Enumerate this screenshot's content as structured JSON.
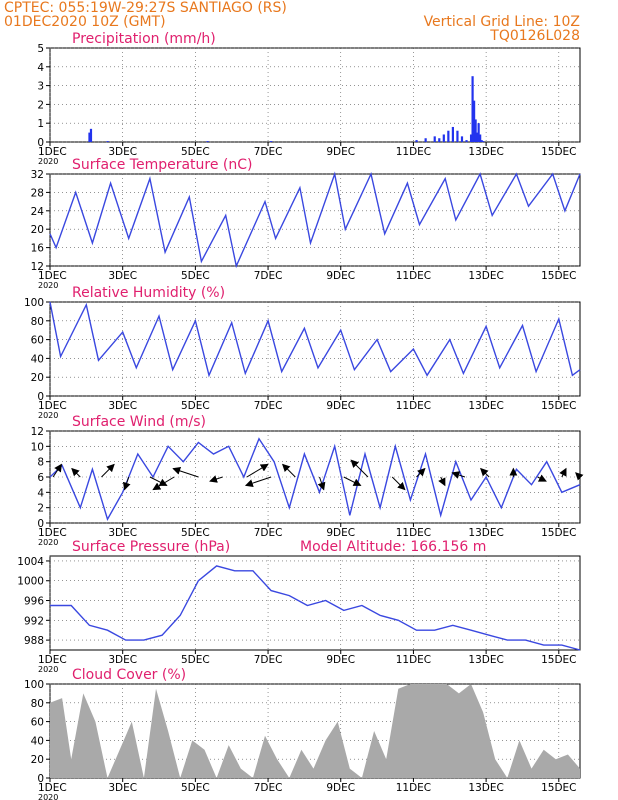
{
  "header": {
    "source_line": "CPTEC:   055:19W-29:27S   SANTIAGO (RS)",
    "date_line": "01DEC2020 10Z (GMT)",
    "grid_note": "Vertical Grid Line: 10Z",
    "code": "TQ0126L028"
  },
  "x_axis": {
    "tick_labels": [
      "1DEC",
      "3DEC",
      "5DEC",
      "7DEC",
      "9DEC",
      "11DEC",
      "13DEC",
      "15DEC"
    ],
    "year_label": "2020",
    "start": "2020-12-01",
    "end": "2020-12-16"
  },
  "colors": {
    "line": "#3a48e0",
    "bars": "#2233ee",
    "cloud": "#a9a9a9",
    "header": "#e8781e",
    "panel_title": "#e0206e"
  },
  "chart_data": [
    {
      "id": "precipitation",
      "type": "bar",
      "title": "Precipitation (mm/h)",
      "ylim": [
        0,
        5
      ],
      "yticks": [
        0,
        1,
        2,
        3,
        4,
        5
      ],
      "grid": true,
      "x": [
        "2020-12-02T12Z",
        "2020-12-02T13Z",
        "2020-12-03T00Z",
        "2020-12-05T18Z",
        "2020-12-07T12Z",
        "2020-12-11T12Z",
        "2020-12-11T18Z",
        "2020-12-12T00Z",
        "2020-12-12T03Z",
        "2020-12-12T06Z",
        "2020-12-12T09Z",
        "2020-12-12T12Z",
        "2020-12-12T15Z",
        "2020-12-12T18Z",
        "2020-12-12T21Z",
        "2020-12-13T00Z",
        "2020-12-13T01Z",
        "2020-12-13T02Z",
        "2020-12-13T03Z",
        "2020-12-13T04Z",
        "2020-12-13T05Z",
        "2020-12-13T06Z",
        "2020-12-13T07Z",
        "2020-12-13T08Z"
      ],
      "values": [
        0.5,
        0.7,
        0.05,
        0.05,
        0.05,
        0.1,
        0.2,
        0.3,
        0.2,
        0.4,
        0.6,
        0.8,
        0.6,
        0.3,
        0.1,
        0.4,
        3.5,
        2.2,
        1.2,
        0.5,
        1.0,
        0.4,
        0.1,
        0.05
      ]
    },
    {
      "id": "temperature",
      "type": "line",
      "title": "Surface Temperature (nC)",
      "ylim": [
        12,
        32
      ],
      "yticks": [
        12,
        16,
        20,
        24,
        28,
        32
      ],
      "grid": true,
      "x": [
        "2020-12-01T10Z",
        "2020-12-01T14Z",
        "2020-12-02T03Z",
        "2020-12-02T14Z",
        "2020-12-03T02Z",
        "2020-12-03T14Z",
        "2020-12-04T04Z",
        "2020-12-04T14Z",
        "2020-12-05T06Z",
        "2020-12-05T14Z",
        "2020-12-06T06Z",
        "2020-12-06T13Z",
        "2020-12-07T08Z",
        "2020-12-07T15Z",
        "2020-12-08T07Z",
        "2020-12-08T14Z",
        "2020-12-09T06Z",
        "2020-12-09T13Z",
        "2020-12-10T06Z",
        "2020-12-10T15Z",
        "2020-12-11T06Z",
        "2020-12-11T14Z",
        "2020-12-12T07Z",
        "2020-12-12T14Z",
        "2020-12-13T06Z",
        "2020-12-13T14Z",
        "2020-12-14T06Z",
        "2020-12-14T14Z",
        "2020-12-15T06Z",
        "2020-12-15T14Z",
        "2020-12-16T00Z"
      ],
      "values": [
        19,
        16,
        28,
        17,
        30,
        18,
        31,
        15,
        27,
        13,
        23,
        12,
        26,
        18,
        29,
        17,
        32,
        20,
        32,
        19,
        30,
        21,
        31,
        22,
        32,
        23,
        32,
        25,
        32,
        24,
        32
      ]
    },
    {
      "id": "humidity",
      "type": "line",
      "title": "Relative Humidity (%)",
      "ylim": [
        0,
        100
      ],
      "yticks": [
        0,
        20,
        40,
        60,
        80,
        100
      ],
      "grid": true,
      "x": [
        "2020-12-01T10Z",
        "2020-12-01T17Z",
        "2020-12-02T10Z",
        "2020-12-02T18Z",
        "2020-12-03T10Z",
        "2020-12-03T19Z",
        "2020-12-04T10Z",
        "2020-12-04T19Z",
        "2020-12-05T10Z",
        "2020-12-05T19Z",
        "2020-12-06T10Z",
        "2020-12-06T19Z",
        "2020-12-07T10Z",
        "2020-12-07T19Z",
        "2020-12-08T10Z",
        "2020-12-08T19Z",
        "2020-12-09T10Z",
        "2020-12-09T19Z",
        "2020-12-10T10Z",
        "2020-12-10T19Z",
        "2020-12-11T10Z",
        "2020-12-11T19Z",
        "2020-12-12T10Z",
        "2020-12-12T19Z",
        "2020-12-13T10Z",
        "2020-12-13T19Z",
        "2020-12-14T10Z",
        "2020-12-14T19Z",
        "2020-12-15T10Z",
        "2020-12-15T19Z",
        "2020-12-16T00Z"
      ],
      "values": [
        100,
        42,
        97,
        38,
        68,
        30,
        85,
        28,
        80,
        22,
        78,
        24,
        80,
        26,
        72,
        30,
        70,
        28,
        60,
        26,
        50,
        22,
        60,
        24,
        74,
        30,
        75,
        26,
        82,
        22,
        28
      ]
    },
    {
      "id": "wind",
      "type": "line",
      "title": "Surface Wind (m/s)",
      "ylim": [
        0,
        12
      ],
      "yticks": [
        0,
        2,
        4,
        6,
        8,
        10,
        12
      ],
      "grid": true,
      "x": [
        "2020-12-01T10Z",
        "2020-12-01T18Z",
        "2020-12-02T06Z",
        "2020-12-02T14Z",
        "2020-12-03T00Z",
        "2020-12-03T10Z",
        "2020-12-03T20Z",
        "2020-12-04T06Z",
        "2020-12-04T16Z",
        "2020-12-05T02Z",
        "2020-12-05T12Z",
        "2020-12-05T22Z",
        "2020-12-06T08Z",
        "2020-12-06T18Z",
        "2020-12-07T04Z",
        "2020-12-07T14Z",
        "2020-12-08T00Z",
        "2020-12-08T10Z",
        "2020-12-08T20Z",
        "2020-12-09T06Z",
        "2020-12-09T16Z",
        "2020-12-10T02Z",
        "2020-12-10T12Z",
        "2020-12-10T22Z",
        "2020-12-11T08Z",
        "2020-12-11T18Z",
        "2020-12-12T04Z",
        "2020-12-12T14Z",
        "2020-12-13T00Z",
        "2020-12-13T10Z",
        "2020-12-13T20Z",
        "2020-12-14T06Z",
        "2020-12-14T16Z",
        "2020-12-15T02Z",
        "2020-12-15T12Z",
        "2020-12-16T00Z"
      ],
      "values": [
        6,
        7.5,
        2,
        7,
        0.5,
        4,
        9,
        6,
        10,
        8,
        10.5,
        9,
        10,
        6,
        11,
        8,
        2,
        9,
        4,
        10,
        1,
        9,
        2,
        10,
        3,
        9,
        1,
        8,
        3,
        6,
        2,
        7,
        5,
        8,
        4,
        5
      ],
      "arrows": {
        "x": [
          "2020-12-01T12Z",
          "2020-12-02T06Z",
          "2020-12-02T20Z",
          "2020-12-03T14Z",
          "2020-12-04T04Z",
          "2020-12-04T20Z",
          "2020-12-05T12Z",
          "2020-12-06T04Z",
          "2020-12-06T20Z",
          "2020-12-07T12Z",
          "2020-12-08T04Z",
          "2020-12-08T20Z",
          "2020-12-09T12Z",
          "2020-12-10T04Z",
          "2020-12-10T20Z",
          "2020-12-11T12Z",
          "2020-12-12T04Z",
          "2020-12-12T20Z",
          "2020-12-13T12Z",
          "2020-12-14T04Z",
          "2020-12-14T20Z",
          "2020-12-15T12Z",
          "2020-12-16T00Z"
        ],
        "u": [
          2,
          -2,
          3,
          -1,
          4,
          -5,
          -6,
          -3,
          5,
          -6,
          -3,
          1,
          4,
          -4,
          3,
          2,
          1,
          -3,
          -2,
          0,
          2,
          1,
          -1
        ],
        "v": [
          3,
          2,
          3,
          -3,
          -2,
          -3,
          2,
          -1,
          3,
          -2,
          3,
          -3,
          -2,
          4,
          -3,
          2,
          -2,
          1,
          2,
          2,
          -1,
          2,
          1
        ]
      }
    },
    {
      "id": "pressure",
      "type": "line",
      "title": "Surface Pressure (hPa)",
      "annotation": "Model Altitude: 166.156  m",
      "ylim": [
        986,
        1005
      ],
      "yticks": [
        988,
        992,
        996,
        1000,
        1004
      ],
      "grid": true,
      "x": [
        "2020-12-01T10Z",
        "2020-12-02T00Z",
        "2020-12-02T12Z",
        "2020-12-03T00Z",
        "2020-12-03T12Z",
        "2020-12-04T00Z",
        "2020-12-04T12Z",
        "2020-12-05T00Z",
        "2020-12-05T12Z",
        "2020-12-06T00Z",
        "2020-12-06T12Z",
        "2020-12-07T00Z",
        "2020-12-07T12Z",
        "2020-12-08T00Z",
        "2020-12-08T12Z",
        "2020-12-09T00Z",
        "2020-12-09T12Z",
        "2020-12-10T00Z",
        "2020-12-10T12Z",
        "2020-12-11T00Z",
        "2020-12-11T12Z",
        "2020-12-12T00Z",
        "2020-12-12T12Z",
        "2020-12-13T00Z",
        "2020-12-13T12Z",
        "2020-12-14T00Z",
        "2020-12-14T12Z",
        "2020-12-15T00Z",
        "2020-12-15T12Z",
        "2020-12-16T00Z"
      ],
      "values": [
        995,
        995,
        991,
        990,
        988,
        988,
        989,
        993,
        1000,
        1003,
        1002,
        1002,
        998,
        997,
        995,
        996,
        994,
        995,
        993,
        992,
        990,
        990,
        991,
        990,
        989,
        988,
        988,
        987,
        987,
        986
      ]
    },
    {
      "id": "cloud_cover",
      "type": "area",
      "title": "Cloud Cover (%)",
      "ylim": [
        0,
        100
      ],
      "yticks": [
        0,
        20,
        40,
        60,
        80,
        100
      ],
      "grid": true,
      "x": [
        "2020-12-01T10Z",
        "2020-12-01T18Z",
        "2020-12-02T00Z",
        "2020-12-02T08Z",
        "2020-12-02T16Z",
        "2020-12-03T00Z",
        "2020-12-03T08Z",
        "2020-12-03T16Z",
        "2020-12-04T00Z",
        "2020-12-04T08Z",
        "2020-12-04T16Z",
        "2020-12-05T00Z",
        "2020-12-05T08Z",
        "2020-12-05T16Z",
        "2020-12-06T00Z",
        "2020-12-06T08Z",
        "2020-12-06T16Z",
        "2020-12-07T00Z",
        "2020-12-07T08Z",
        "2020-12-07T16Z",
        "2020-12-08T00Z",
        "2020-12-08T08Z",
        "2020-12-08T16Z",
        "2020-12-09T00Z",
        "2020-12-09T08Z",
        "2020-12-09T16Z",
        "2020-12-10T00Z",
        "2020-12-10T08Z",
        "2020-12-10T16Z",
        "2020-12-11T00Z",
        "2020-12-11T08Z",
        "2020-12-11T16Z",
        "2020-12-12T00Z",
        "2020-12-12T08Z",
        "2020-12-12T16Z",
        "2020-12-13T00Z",
        "2020-12-13T08Z",
        "2020-12-13T16Z",
        "2020-12-14T00Z",
        "2020-12-14T08Z",
        "2020-12-14T16Z",
        "2020-12-15T00Z",
        "2020-12-15T08Z",
        "2020-12-15T16Z",
        "2020-12-16T00Z"
      ],
      "values": [
        80,
        85,
        20,
        90,
        60,
        0,
        30,
        60,
        0,
        95,
        50,
        0,
        40,
        30,
        0,
        35,
        10,
        0,
        45,
        20,
        0,
        30,
        10,
        40,
        60,
        10,
        0,
        50,
        20,
        95,
        100,
        100,
        100,
        100,
        90,
        100,
        70,
        20,
        0,
        40,
        10,
        30,
        20,
        25,
        10
      ]
    }
  ]
}
